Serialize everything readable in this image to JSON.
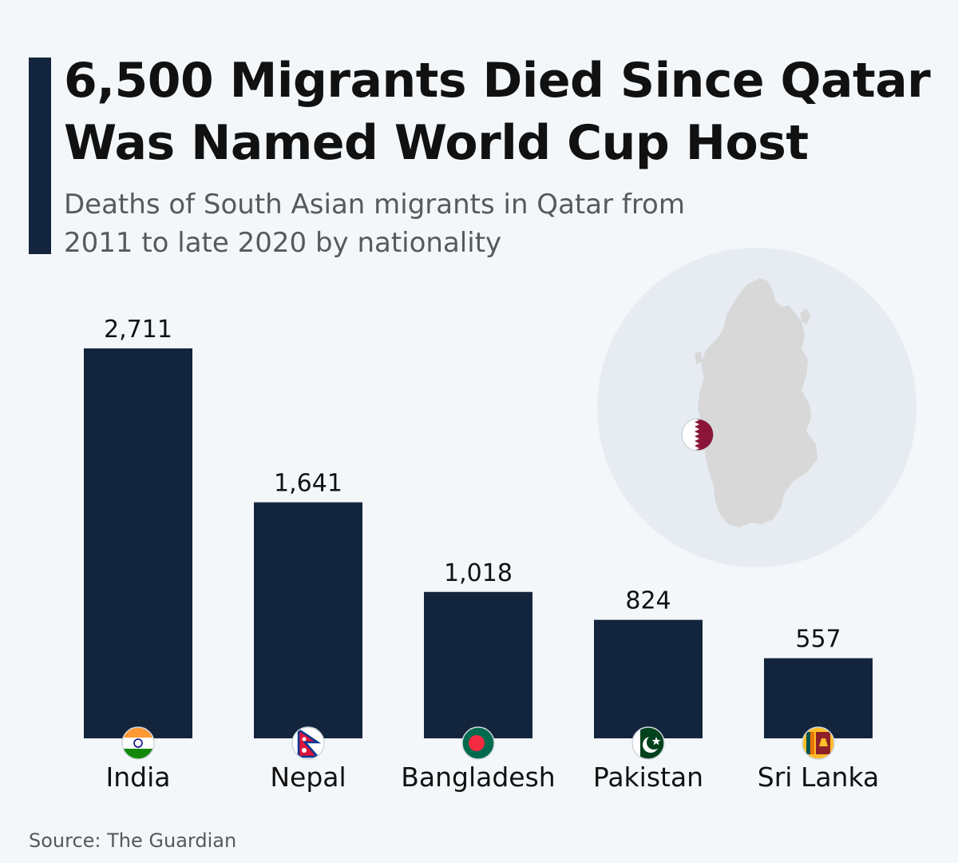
{
  "title": "6,500 Migrants Died Since Qatar Was Named World Cup Host",
  "subtitle": "Deaths of South Asian migrants in Qatar from 2011 to late 2020 by nationality",
  "source": "Source: The Guardian",
  "colors": {
    "bar": "#13253d",
    "accent": "#13253d",
    "background": "#f3f7fa",
    "map_circle": "#e6ecf2",
    "map_land": "#d8d8d8",
    "qatar_maroon": "#8a1538"
  },
  "icons": {
    "map": "qatar-map-icon",
    "flags": [
      "india-flag-icon",
      "nepal-flag-icon",
      "bangladesh-flag-icon",
      "pakistan-flag-icon",
      "sri-lanka-flag-icon",
      "qatar-flag-icon"
    ]
  },
  "chart_data": {
    "type": "bar",
    "categories": [
      "India",
      "Nepal",
      "Bangladesh",
      "Pakistan",
      "Sri Lanka"
    ],
    "values": [
      2711,
      1641,
      1018,
      824,
      557
    ],
    "value_labels": [
      "2,711",
      "1,641",
      "1,018",
      "824",
      "557"
    ],
    "title": "6,500 Migrants Died Since Qatar Was Named World Cup Host",
    "subtitle": "Deaths of South Asian migrants in Qatar from 2011 to late 2020 by nationality",
    "xlabel": "",
    "ylabel": "",
    "ylim": [
      0,
      2711
    ],
    "grid": false,
    "legend": "none"
  }
}
